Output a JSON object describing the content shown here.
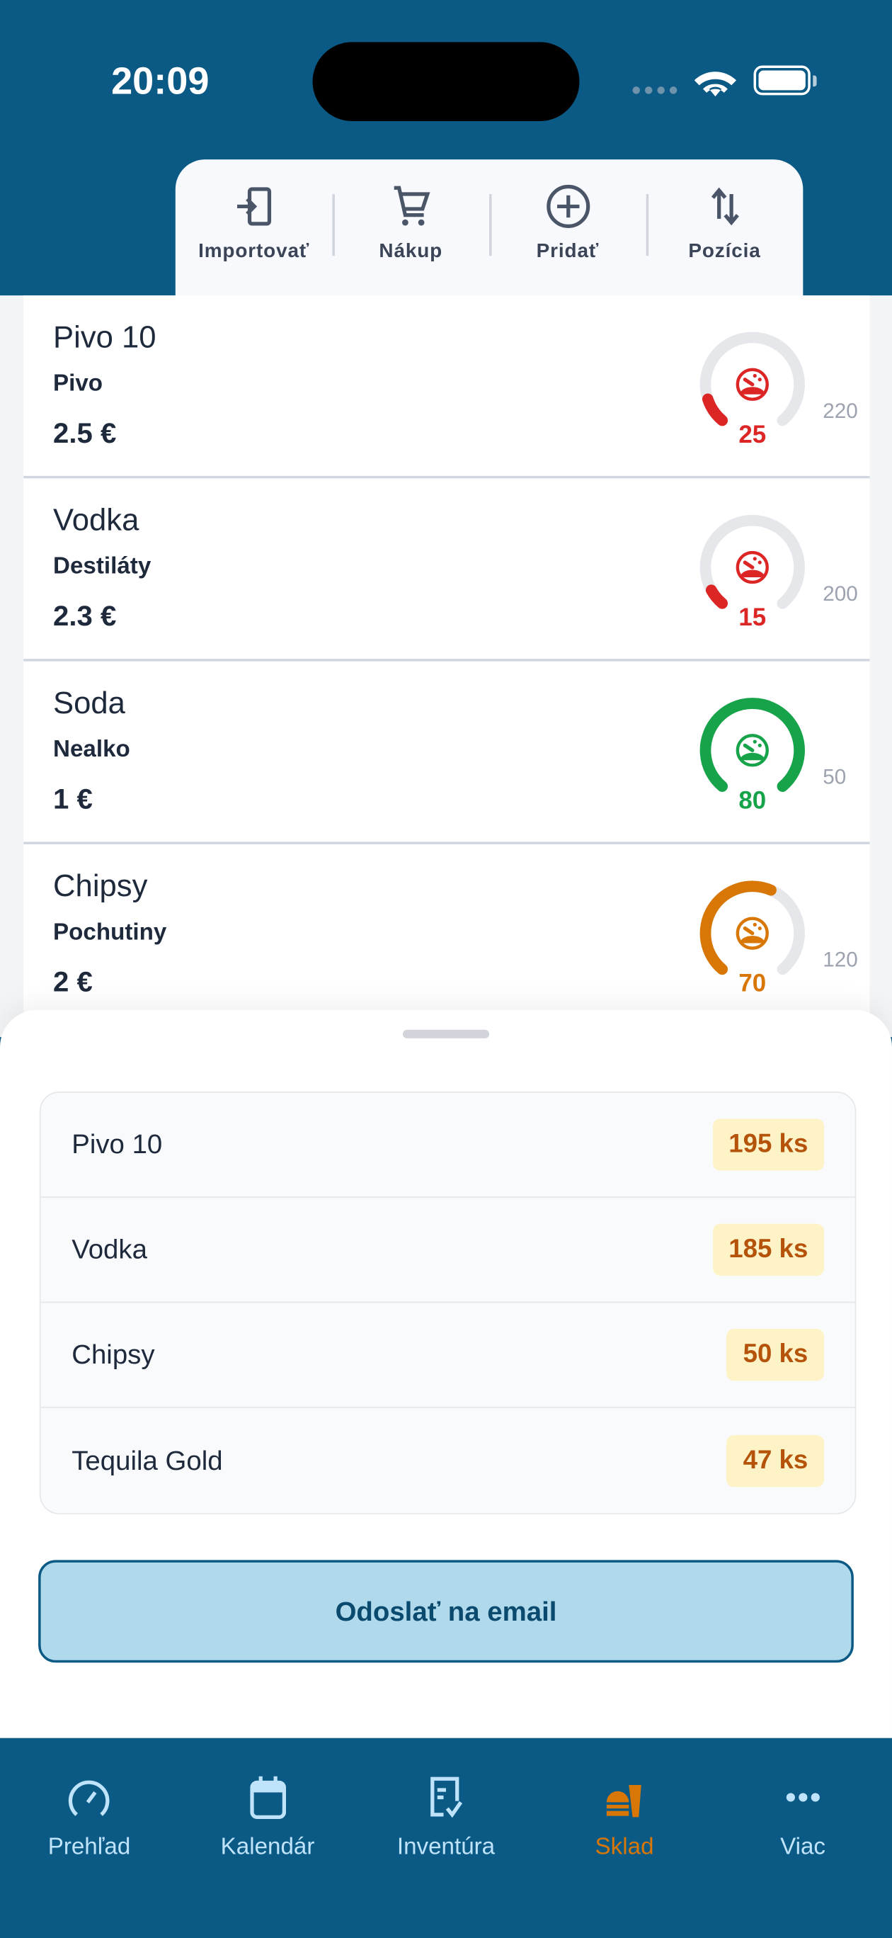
{
  "status_bar": {
    "time": "20:09"
  },
  "toolbar": [
    {
      "label": "Importovať",
      "icon": "import-icon"
    },
    {
      "label": "Nákup",
      "icon": "cart-icon"
    },
    {
      "label": "Pridať",
      "icon": "add-circle-icon"
    },
    {
      "label": "Pozícia",
      "icon": "sort-icon"
    }
  ],
  "items": [
    {
      "name": "Pivo 10",
      "category": "Pivo",
      "price": "2.5 €",
      "stock": 25,
      "stock_label": "25",
      "max": 220,
      "max_label": "220",
      "color": "#dc2626"
    },
    {
      "name": "Vodka",
      "category": "Destiláty",
      "price": "2.3 €",
      "stock": 15,
      "stock_label": "15",
      "max": 200,
      "max_label": "200",
      "color": "#dc2626"
    },
    {
      "name": "Soda",
      "category": "Nealko",
      "price": "1 €",
      "stock": 80,
      "stock_label": "80",
      "max": 50,
      "max_label": "50",
      "color": "#16a34a"
    },
    {
      "name": "Chipsy",
      "category": "Pochutiny",
      "price": "2 €",
      "stock": 70,
      "stock_label": "70",
      "max": 120,
      "max_label": "120",
      "color": "#d97706"
    }
  ],
  "sheet": {
    "rows": [
      {
        "name": "Pivo 10",
        "qty": "195 ks"
      },
      {
        "name": "Vodka",
        "qty": "185 ks"
      },
      {
        "name": "Chipsy",
        "qty": "50 ks"
      },
      {
        "name": "Tequila Gold",
        "qty": "47 ks"
      }
    ],
    "send_label": "Odoslať na email"
  },
  "nav": [
    {
      "label": "Prehľad",
      "icon": "speedometer-icon"
    },
    {
      "label": "Kalendár",
      "icon": "calendar-icon"
    },
    {
      "label": "Inventúra",
      "icon": "checklist-icon"
    },
    {
      "label": "Sklad",
      "icon": "food-icon",
      "active": true
    },
    {
      "label": "Viac",
      "icon": "more-icon"
    }
  ],
  "colors": {
    "brand": "#0b5a85",
    "accent": "#d97706"
  }
}
